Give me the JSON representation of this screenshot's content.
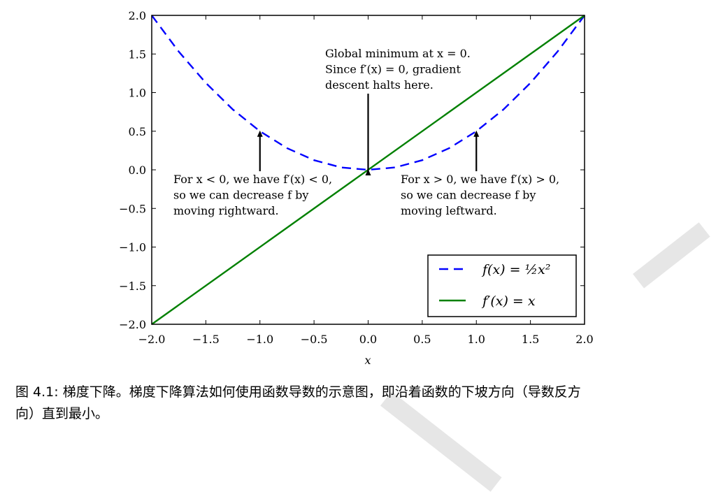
{
  "chart_data": {
    "type": "line",
    "xlabel": "x",
    "ylabel": "",
    "xlim": [
      -2.0,
      2.0
    ],
    "ylim": [
      -2.0,
      2.0
    ],
    "grid": false,
    "x_ticks": [
      "−2.0",
      "−1.5",
      "−1.0",
      "−0.5",
      "0.0",
      "0.5",
      "1.0",
      "1.5",
      "2.0"
    ],
    "y_ticks": [
      "2.0",
      "1.5",
      "1.0",
      "0.5",
      "0.0",
      "−0.5",
      "−1.0",
      "−1.5",
      "−2.0"
    ],
    "legend_position": "bottom-right",
    "series": [
      {
        "name": "f(x) = ½x²",
        "style": "dashed",
        "color": "#0000ff",
        "x": [
          -2.0,
          -1.75,
          -1.5,
          -1.25,
          -1.0,
          -0.75,
          -0.5,
          -0.25,
          0.0,
          0.25,
          0.5,
          0.75,
          1.0,
          1.25,
          1.5,
          1.75,
          2.0
        ],
        "y": [
          2.0,
          1.53,
          1.125,
          0.781,
          0.5,
          0.281,
          0.125,
          0.031,
          0.0,
          0.031,
          0.125,
          0.281,
          0.5,
          0.781,
          1.125,
          1.53,
          2.0
        ]
      },
      {
        "name": "f′(x) = x",
        "style": "solid",
        "color": "#008000",
        "x": [
          -2.0,
          2.0
        ],
        "y": [
          -2.0,
          2.0
        ]
      }
    ],
    "annotations": [
      {
        "lines": [
          "Global minimum at x = 0.",
          "Since f′(x) = 0, gradient",
          "descent halts here."
        ],
        "arrow_to": [
          0.0,
          0.0
        ]
      },
      {
        "lines": [
          "For x < 0, we have f′(x) < 0,",
          "so we can decrease f by",
          "moving rightward."
        ],
        "arrow_to": [
          -1.0,
          0.5
        ]
      },
      {
        "lines": [
          "For x > 0, we have f′(x) > 0,",
          "so we can decrease f by",
          "moving leftward."
        ],
        "arrow_to": [
          1.0,
          0.5
        ]
      }
    ]
  },
  "caption": {
    "line1": "图 4.1: 梯度下降。梯度下降算法如何使用函数导数的示意图，即沿着函数的下坡方向（导数反方",
    "line2": "向）直到最小。"
  },
  "colors": {
    "curve": "#0000ff",
    "derivative": "#008000",
    "watermark": "#e6e6e6"
  }
}
